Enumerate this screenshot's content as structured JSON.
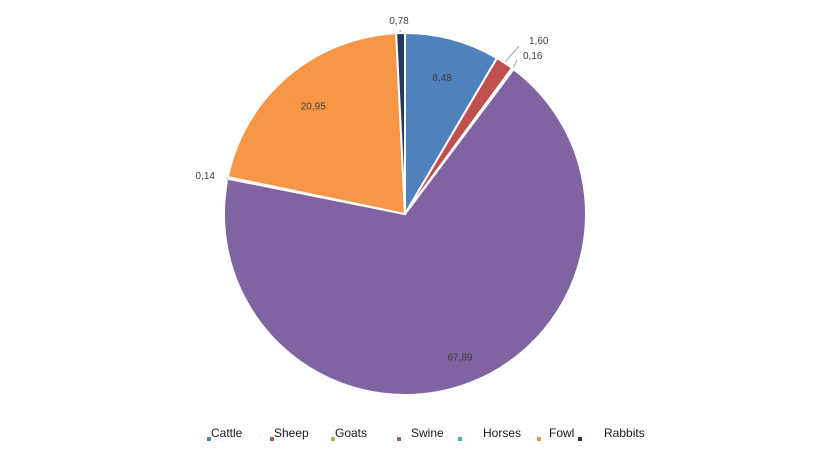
{
  "chart_data": {
    "type": "pie",
    "categories": [
      "Cattle",
      "Sheep",
      "Goats",
      "Swine",
      "Horses",
      "Fowl",
      "Rabbits"
    ],
    "values": [
      8.48,
      1.6,
      0.16,
      67.89,
      0.14,
      20.95,
      0.78
    ],
    "value_labels": [
      "8,48",
      "1,60",
      "0,16",
      "67,89",
      "0,14",
      "20,95",
      "0,78"
    ],
    "colors": [
      "#4f81bd",
      "#c0504d",
      "#9bbb59",
      "#8064a2",
      "#4bacc6",
      "#f79646",
      "#1f3864"
    ],
    "legend_position": "bottom",
    "start_angle": "top (12 o'clock), clockwise"
  }
}
